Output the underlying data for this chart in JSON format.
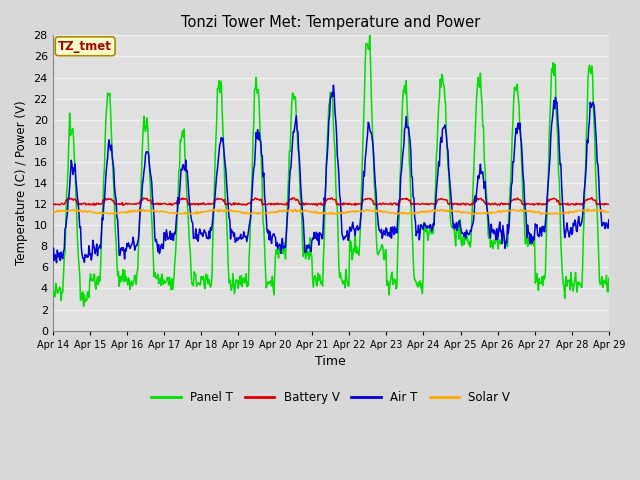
{
  "title": "Tonzi Tower Met: Temperature and Power",
  "xlabel": "Time",
  "ylabel": "Temperature (C) / Power (V)",
  "ylim": [
    0,
    28
  ],
  "yticks": [
    0,
    2,
    4,
    6,
    8,
    10,
    12,
    14,
    16,
    18,
    20,
    22,
    24,
    26,
    28
  ],
  "xtick_labels": [
    "Apr 14",
    "Apr 15",
    "Apr 16",
    "Apr 17",
    "Apr 18",
    "Apr 19",
    "Apr 20",
    "Apr 21",
    "Apr 22",
    "Apr 23",
    "Apr 24",
    "Apr 25",
    "Apr 26",
    "Apr 27",
    "Apr 28",
    "Apr 29"
  ],
  "fig_bg_color": "#d8d8d8",
  "plot_bg_color": "#e0e0e0",
  "grid_color": "#f0f0f0",
  "legend_labels": [
    "Panel T",
    "Battery V",
    "Air T",
    "Solar V"
  ],
  "legend_colors": [
    "#00dd00",
    "#dd0000",
    "#0000dd",
    "#ffaa00"
  ],
  "tz_label": "TZ_tmet",
  "tz_box_color": "#ffffcc",
  "tz_text_color": "#aa0000",
  "tz_border_color": "#aa8800"
}
